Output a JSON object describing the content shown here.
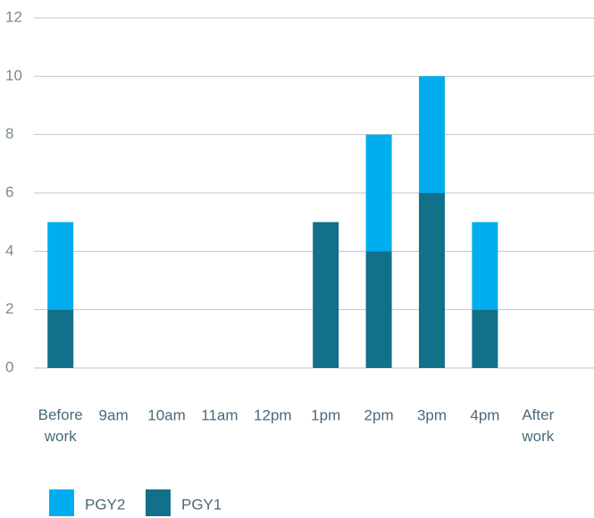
{
  "chart_data": {
    "type": "stacked_bar",
    "categories": [
      "Before work",
      "9am",
      "10am",
      "11am",
      "12pm",
      "1pm",
      "2pm",
      "3pm",
      "4pm",
      "After work"
    ],
    "series": [
      {
        "name": "PGY1",
        "color": "#13708a",
        "values": [
          2,
          0,
          0,
          0,
          0,
          5,
          4,
          6,
          2,
          0
        ]
      },
      {
        "name": "PGY2",
        "color": "#00aeef",
        "values": [
          3,
          0,
          0,
          0,
          0,
          0,
          4,
          4,
          3,
          0
        ]
      }
    ],
    "ylim": [
      0,
      12
    ],
    "yticks": [
      0,
      2,
      4,
      6,
      8,
      10,
      12
    ],
    "grid": true,
    "legend": "bottom"
  }
}
